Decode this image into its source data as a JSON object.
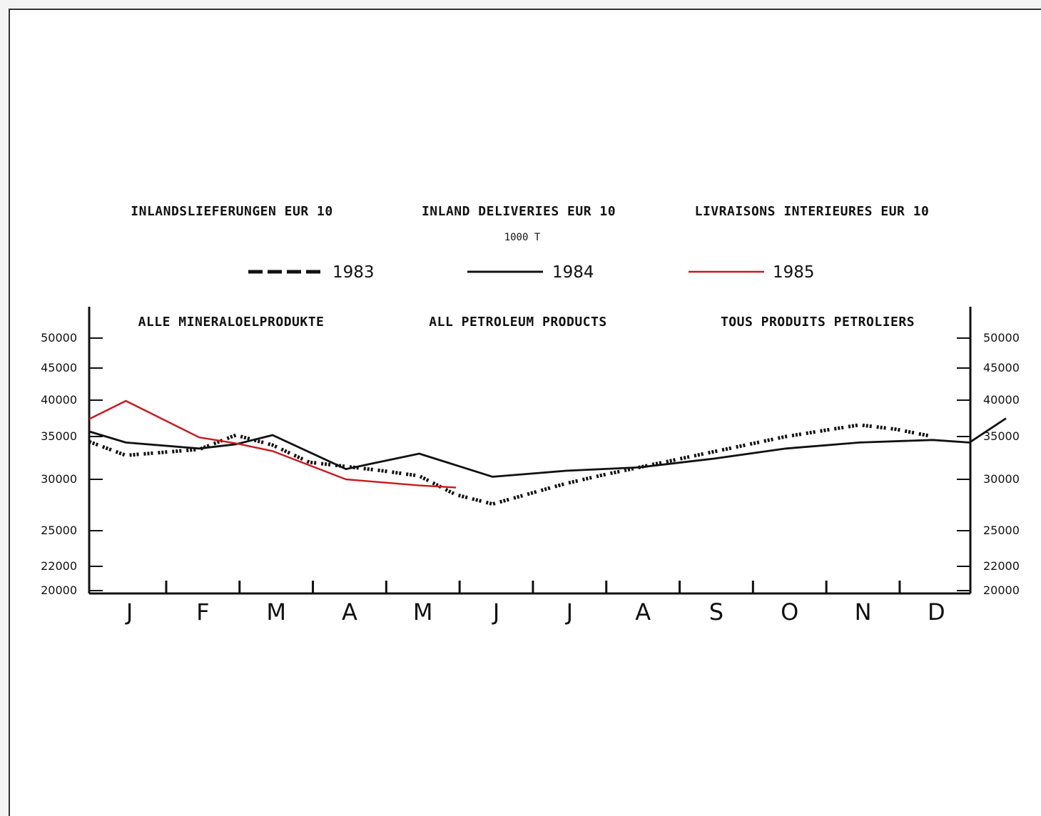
{
  "header": {
    "title_de": "INLANDSLIEFERUNGEN EUR 10",
    "title_en": "INLAND DELIVERIES EUR 10",
    "title_fr": "LIVRAISONS INTERIEURES EUR 10",
    "unit": "1000 T"
  },
  "subtitle": {
    "de": "ALLE MINERALOELPRODUKTE",
    "en": "ALL PETROLEUM PRODUCTS",
    "fr": "TOUS PRODUITS PETROLIERS"
  },
  "chart_data": {
    "type": "line",
    "categories": [
      "J",
      "F",
      "M",
      "A",
      "M",
      "J",
      "J",
      "A",
      "S",
      "O",
      "N",
      "D"
    ],
    "yticks": [
      20000,
      22000,
      25000,
      30000,
      35000,
      40000,
      45000,
      50000
    ],
    "ylim": [
      20000,
      50000
    ],
    "grid": false,
    "legend_position": "top",
    "series": [
      {
        "name": "1983",
        "style": "dotted",
        "color": "#111111",
        "x": [
          0.5,
          1,
          2,
          2.5,
          3,
          3.5,
          4,
          4.5,
          5,
          5.5,
          6,
          6.5,
          7,
          7.5,
          8,
          8.5,
          9,
          9.5,
          10,
          10.5,
          11,
          11.5,
          12
        ],
        "y": [
          34400,
          32800,
          33500,
          35200,
          34000,
          32000,
          31500,
          31000,
          30400,
          28500,
          27600,
          28600,
          29600,
          30500,
          31400,
          32300,
          33200,
          34100,
          35000,
          35800,
          36600,
          36000,
          35000
        ]
      },
      {
        "name": "1984",
        "style": "solid",
        "color": "#111111",
        "x": [
          0.5,
          1,
          2,
          2.5,
          3,
          4,
          5,
          6,
          7,
          8,
          9,
          10,
          11,
          12,
          12.5,
          13
        ],
        "y": [
          35700,
          34300,
          33600,
          34100,
          35200,
          31200,
          33000,
          30300,
          31000,
          31400,
          32400,
          33600,
          34300,
          34600,
          34300,
          37500
        ]
      },
      {
        "name": "1985",
        "style": "solid",
        "color": "#c8191e",
        "x": [
          0.5,
          1,
          2,
          2.5,
          3,
          4,
          5,
          5.5
        ],
        "y": [
          37400,
          39900,
          34900,
          34200,
          33300,
          30000,
          29400,
          29200
        ]
      }
    ]
  }
}
